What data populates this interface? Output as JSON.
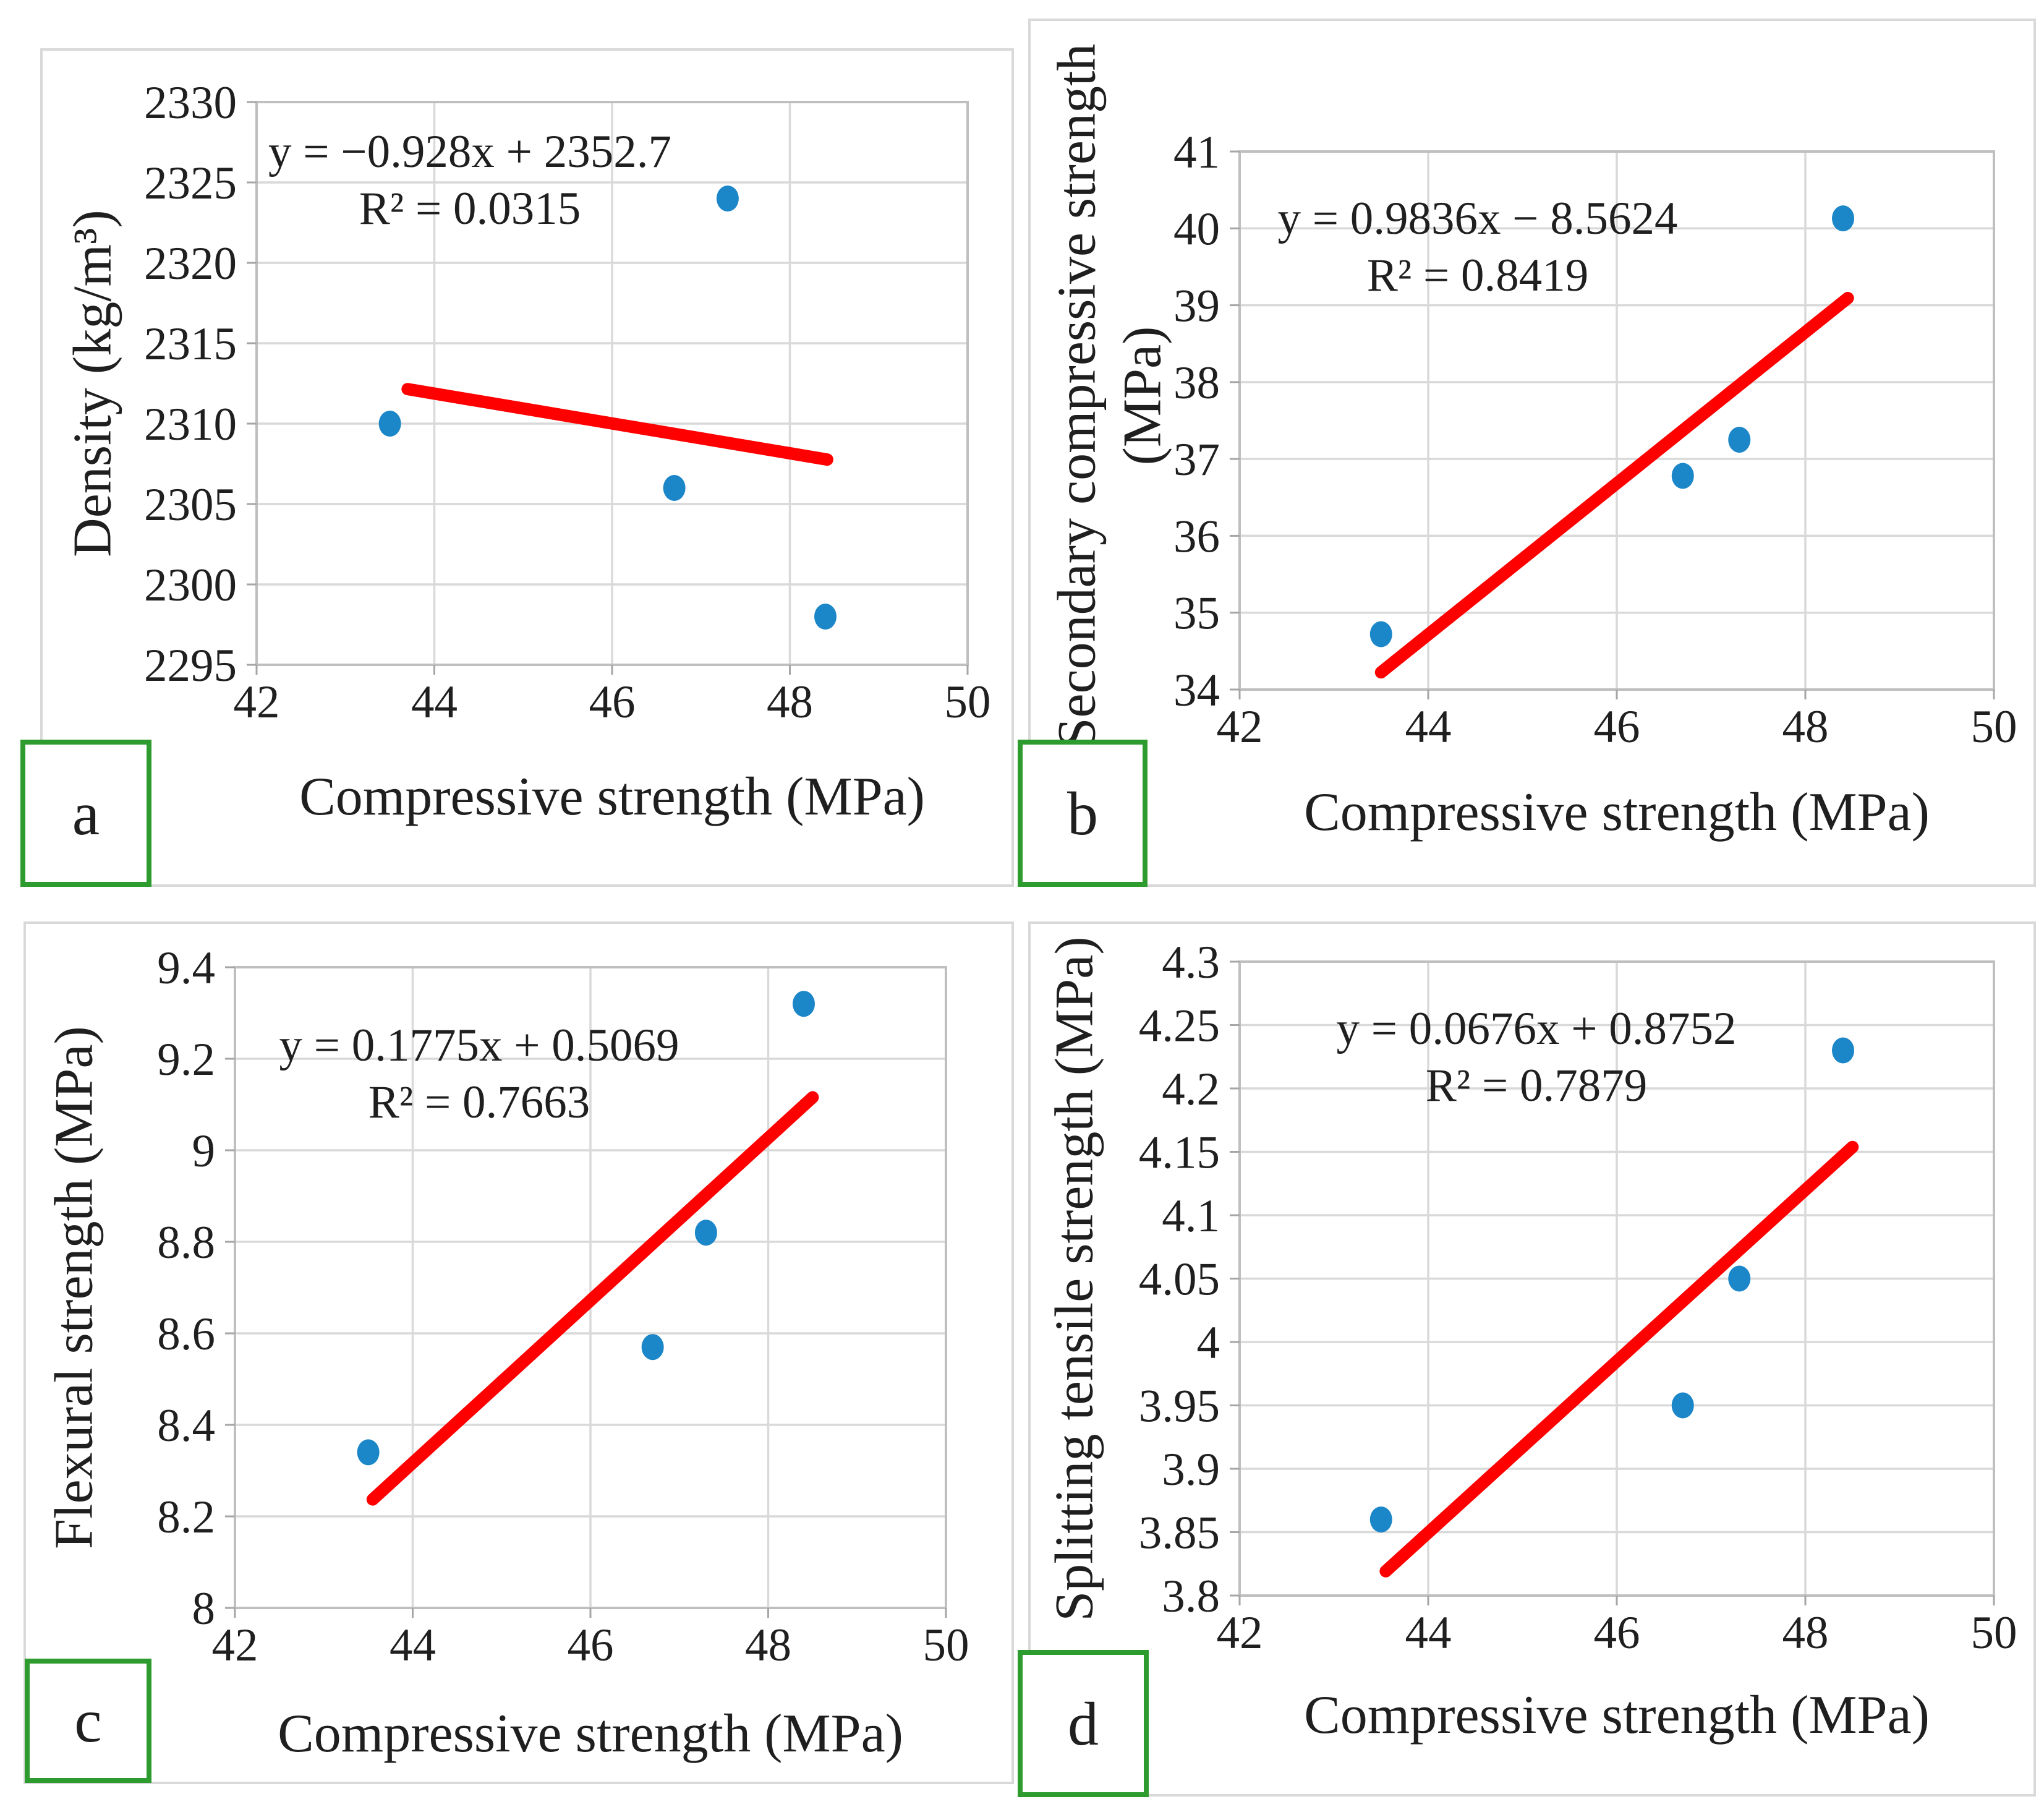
{
  "colors": {
    "point_fill": "#1b86c8",
    "trendline": "#ff0000",
    "gridline": "#d9d9d9",
    "plot_border": "#bfbfbf",
    "tick_mark": "#a6a6a6",
    "panel_border": "#d9d9d9",
    "label_box_border": "#2e9b2f",
    "text": "#1f1f1f"
  },
  "chart_data": [
    {
      "panel": "a",
      "panel_label": "a",
      "type": "scatter",
      "xlabel": "Compressive strength (MPa)",
      "ylabel": "Density (kg/m³)",
      "equation": "y = −0.928x + 2352.7",
      "r_squared": "R² = 0.0315",
      "xlim": [
        42,
        50
      ],
      "ylim": [
        2295,
        2330
      ],
      "xticks": [
        "42",
        "44",
        "46",
        "48",
        "50"
      ],
      "yticks": [
        "2295",
        "2300",
        "2305",
        "2310",
        "2315",
        "2320",
        "2325",
        "2330"
      ],
      "grid": true,
      "legend": false,
      "points": [
        [
          43.5,
          2310
        ],
        [
          46.7,
          2306
        ],
        [
          47.3,
          2324
        ],
        [
          48.4,
          2298
        ]
      ],
      "trendline": {
        "slope": -0.928,
        "intercept": 2352.7,
        "x_start": 43.7,
        "x_end": 48.42
      }
    },
    {
      "panel": "b",
      "panel_label": "b",
      "type": "scatter",
      "xlabel": "Compressive strength (MPa)",
      "ylabel": "Secondary compressive strength (MPa)",
      "ylabel_lines": [
        "Secondary compressive strength",
        "(MPa)"
      ],
      "equation": "y = 0.9836x − 8.5624",
      "r_squared": "R² = 0.8419",
      "xlim": [
        42,
        50
      ],
      "ylim": [
        34,
        41
      ],
      "xticks": [
        "42",
        "44",
        "46",
        "48",
        "50"
      ],
      "yticks": [
        "34",
        "35",
        "36",
        "37",
        "38",
        "39",
        "40",
        "41"
      ],
      "grid": true,
      "legend": false,
      "points": [
        [
          43.5,
          34.72
        ],
        [
          46.7,
          36.78
        ],
        [
          47.3,
          37.25
        ],
        [
          48.4,
          40.13
        ]
      ],
      "trendline": {
        "slope": 0.9836,
        "intercept": -8.5624,
        "x_start": 43.5,
        "x_end": 48.45
      }
    },
    {
      "panel": "c",
      "panel_label": "c",
      "type": "scatter",
      "xlabel": "Compressive strength (MPa)",
      "ylabel": "Flexural strength (MPa)",
      "equation": "y = 0.1775x + 0.5069",
      "r_squared": "R² = 0.7663",
      "xlim": [
        42,
        50
      ],
      "ylim": [
        8,
        9.4
      ],
      "xticks": [
        "42",
        "44",
        "46",
        "48",
        "50"
      ],
      "yticks": [
        "8",
        "8.2",
        "8.4",
        "8.6",
        "8.8",
        "9",
        "9.2",
        "9.4"
      ],
      "grid": true,
      "legend": false,
      "points": [
        [
          43.5,
          8.34
        ],
        [
          46.7,
          8.57
        ],
        [
          47.3,
          8.82
        ],
        [
          48.4,
          9.32
        ]
      ],
      "trendline": {
        "slope": 0.1775,
        "intercept": 0.5069,
        "x_start": 43.55,
        "x_end": 48.5
      }
    },
    {
      "panel": "d",
      "panel_label": "d",
      "type": "scatter",
      "xlabel": "Compressive strength (MPa)",
      "ylabel": "Splitting tensile strength (MPa)",
      "equation": "y = 0.0676x + 0.8752",
      "r_squared": "R² = 0.7879",
      "xlim": [
        42,
        50
      ],
      "ylim": [
        3.8,
        4.3
      ],
      "xticks": [
        "42",
        "44",
        "46",
        "48",
        "50"
      ],
      "yticks": [
        "3.8",
        "3.85",
        "3.9",
        "3.95",
        "4",
        "4.05",
        "4.1",
        "4.15",
        "4.2",
        "4.25",
        "4.3"
      ],
      "grid": true,
      "legend": false,
      "points": [
        [
          43.5,
          3.86
        ],
        [
          46.7,
          3.95
        ],
        [
          47.3,
          4.05
        ],
        [
          48.4,
          4.23
        ]
      ],
      "trendline": {
        "slope": 0.0676,
        "intercept": 0.8752,
        "x_start": 43.55,
        "x_end": 48.5
      }
    }
  ]
}
